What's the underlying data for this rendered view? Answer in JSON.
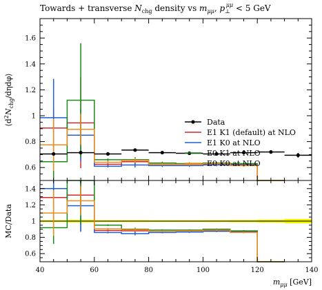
{
  "chart_data": {
    "type": "line",
    "title": "Towards + transverse N_chg density vs m_μμ, p_⊥^μμ < 5 GeV",
    "title_parts": {
      "pre": "Towards + transverse ",
      "N": "N",
      "N_sub": "chg",
      "mid": " density vs ",
      "m": "m",
      "m_sub": "μμ",
      "comma": ", ",
      "p": "p",
      "p_sub": "⊥",
      "p_sup": "μμ",
      "post": " < 5 GeV"
    },
    "xlabel": "m_μμ [GeV]",
    "xlabel_parts": {
      "m": "m",
      "sub": "μμ",
      "unit": " [GeV]"
    },
    "ylabel": "⟨d²N_chg/dηdφ⟩",
    "ylabel_parts": {
      "pre": "⟨d",
      "sup": "2",
      "N": "N",
      "sub": "chg",
      "post": "/dηdφ⟩"
    },
    "ratio_ylabel": "MC/Data",
    "xlim": [
      40,
      140
    ],
    "ylim": [
      0.5,
      1.75
    ],
    "ratio_ylim": [
      0.5,
      1.5
    ],
    "x_ticks": [
      40,
      60,
      80,
      100,
      120,
      140
    ],
    "y_ticks": [
      0.6,
      0.8,
      1,
      1.2,
      1.4,
      1.6
    ],
    "ratio_y_ticks": [
      0.6,
      0.8,
      1,
      1.2,
      1.4
    ],
    "bin_edges": [
      40,
      50,
      60,
      70,
      80,
      90,
      100,
      110,
      120,
      130,
      140
    ],
    "legend_position": "right",
    "band_color": "#f2f200",
    "series": [
      {
        "name": "Data",
        "kind": "data",
        "color": "#000000",
        "x": [
          45,
          55,
          65,
          75,
          85,
          95,
          105,
          115,
          125,
          135
        ],
        "values": [
          0.705,
          0.715,
          0.705,
          0.735,
          0.715,
          0.71,
          0.705,
          0.715,
          0.72,
          0.695
        ],
        "errors": [
          0.01,
          0.012,
          0.008,
          0.01,
          0.008,
          0.008,
          0.008,
          0.01,
          0.012,
          0.018
        ],
        "ratio_band": [
          0.012,
          0.016,
          0.012,
          0.012,
          0.011,
          0.011,
          0.012,
          0.014,
          0.018,
          0.028
        ]
      },
      {
        "name": "E1 K1 (default) at NLO",
        "kind": "mc",
        "color": "#d62728",
        "values": [
          0.905,
          0.945,
          0.625,
          0.645,
          0.625,
          0.625,
          0.625,
          0.625,
          0.0,
          null
        ],
        "errors": [
          0.15,
          0.35,
          0.01,
          0.02,
          0.01,
          0.01,
          0.01,
          0.01,
          0.0,
          null
        ],
        "ratio": [
          1.29,
          1.32,
          0.885,
          0.88,
          0.875,
          0.88,
          0.885,
          0.875,
          0.0,
          null
        ],
        "ratio_errors": [
          0.12,
          0.45,
          0.01,
          0.02,
          0.01,
          0.01,
          0.01,
          0.01,
          0.0,
          null
        ]
      },
      {
        "name": "E1 K0 at NLO",
        "kind": "mc",
        "color": "#1f5fd6",
        "values": [
          0.985,
          0.85,
          0.61,
          0.62,
          0.615,
          0.615,
          0.62,
          0.62,
          0.0,
          null
        ],
        "errors": [
          0.3,
          0.2,
          0.01,
          0.02,
          0.01,
          0.01,
          0.01,
          0.01,
          0.0,
          null
        ],
        "ratio": [
          1.4,
          1.19,
          0.86,
          0.845,
          0.86,
          0.865,
          0.875,
          0.865,
          0.0,
          null
        ],
        "ratio_errors": [
          0.38,
          0.32,
          0.01,
          0.02,
          0.01,
          0.01,
          0.01,
          0.01,
          0.0,
          null
        ]
      },
      {
        "name": "E0 K1 at NLO",
        "kind": "mc",
        "color": "#1a8a1a",
        "values": [
          0.645,
          1.12,
          0.66,
          0.66,
          0.635,
          0.63,
          0.635,
          0.63,
          0.0,
          null
        ],
        "errors": [
          0.14,
          0.44,
          0.01,
          0.02,
          0.01,
          0.01,
          0.01,
          0.01,
          0.0,
          null
        ],
        "ratio": [
          0.92,
          1.56,
          0.95,
          0.9,
          0.89,
          0.89,
          0.9,
          0.88,
          0.0,
          null
        ],
        "ratio_errors": [
          0.2,
          0.6,
          0.01,
          0.02,
          0.01,
          0.01,
          0.01,
          0.01,
          0.0,
          null
        ]
      },
      {
        "name": "E0 K0 at NLO",
        "kind": "mc",
        "color": "#f08c1a",
        "values": [
          0.775,
          0.895,
          0.64,
          0.655,
          0.625,
          0.625,
          0.63,
          0.615,
          0.0,
          null
        ],
        "errors": [
          0.2,
          0.12,
          0.01,
          0.02,
          0.01,
          0.01,
          0.01,
          0.01,
          0.0,
          null
        ],
        "ratio": [
          1.1,
          1.25,
          0.905,
          0.895,
          0.875,
          0.88,
          0.89,
          0.86,
          0.0,
          null
        ],
        "ratio_errors": [
          0.28,
          0.18,
          0.01,
          0.02,
          0.01,
          0.01,
          0.01,
          0.01,
          0.0,
          null
        ]
      }
    ]
  }
}
